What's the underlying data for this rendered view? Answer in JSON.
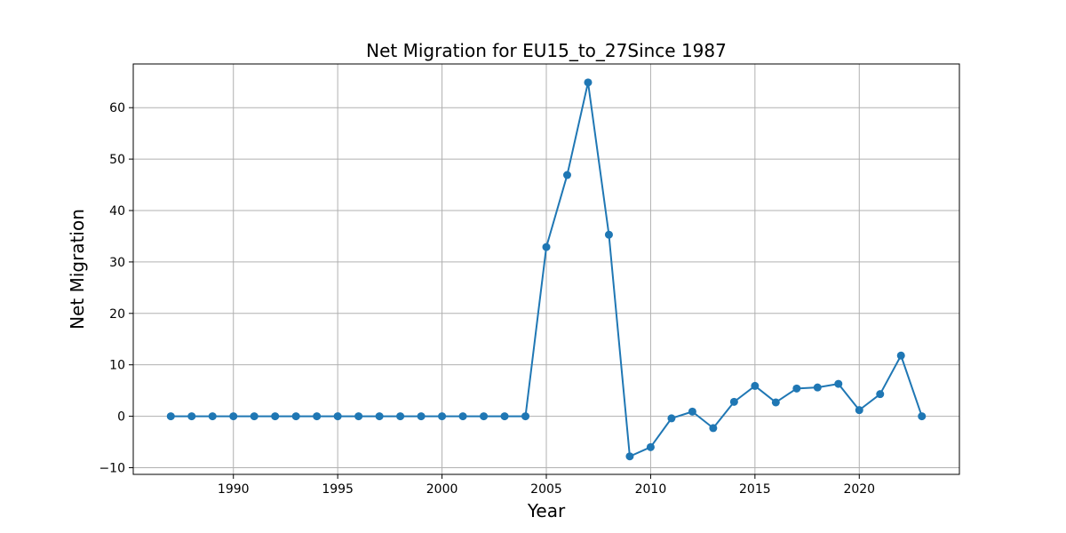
{
  "chart_data": {
    "type": "line",
    "title": "Net Migration for EU15_to_27Since 1987",
    "xlabel": "Year",
    "ylabel": "Net Migration",
    "xlim": [
      1985.2,
      2024.8
    ],
    "ylim": [
      -11.3,
      68.5
    ],
    "xticks": [
      1990,
      1995,
      2000,
      2005,
      2010,
      2015,
      2020
    ],
    "yticks": [
      -10,
      0,
      10,
      20,
      30,
      40,
      50,
      60
    ],
    "grid": true,
    "legend": "none",
    "series": [
      {
        "color": "#1f77b4",
        "marker": "circle",
        "x": [
          1987,
          1988,
          1989,
          1990,
          1991,
          1992,
          1993,
          1994,
          1995,
          1996,
          1997,
          1998,
          1999,
          2000,
          2001,
          2002,
          2003,
          2004,
          2005,
          2006,
          2007,
          2008,
          2009,
          2010,
          2011,
          2012,
          2013,
          2014,
          2015,
          2016,
          2017,
          2018,
          2019,
          2020,
          2021,
          2022,
          2023
        ],
        "y": [
          0,
          0,
          0,
          0,
          0,
          0,
          0,
          0,
          0,
          0,
          0,
          0,
          0,
          0,
          0,
          0,
          0,
          0,
          32.9,
          46.9,
          64.9,
          35.3,
          -7.8,
          -6.0,
          -0.4,
          0.9,
          -2.3,
          2.8,
          5.9,
          2.7,
          5.4,
          5.6,
          6.3,
          1.2,
          4.3,
          11.8,
          0
        ]
      }
    ]
  }
}
